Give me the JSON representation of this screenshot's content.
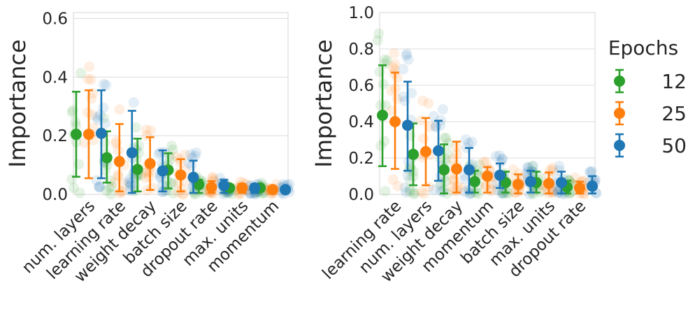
{
  "colors": {
    "epoch_12": "#2ca02c",
    "epoch_25": "#ff7f0e",
    "epoch_50": "#1f77b4",
    "grid": "#dcdcdc",
    "text": "#262626"
  },
  "legend": {
    "title": "Epochs",
    "placement": "right",
    "entries": [
      "12",
      "25",
      "50"
    ]
  },
  "chart_data": [
    {
      "type": "scatter",
      "ylabel": "Importance",
      "ylim": [
        0,
        0.62
      ],
      "yticks": [
        "0.0",
        "0.2",
        "0.4",
        "0.6"
      ],
      "grid": true,
      "categories": [
        "num. layers",
        "learning rate",
        "weight decay",
        "batch size",
        "dropout rate",
        "max. units",
        "momentum"
      ],
      "series": [
        {
          "name": "12",
          "mean": [
            0.205,
            0.125,
            0.085,
            0.083,
            0.033,
            0.022,
            0.022
          ],
          "err_low": [
            0.06,
            0.04,
            0.01,
            0.02,
            0.005,
            0.01,
            0.012
          ],
          "err_high": [
            0.35,
            0.215,
            0.19,
            0.14,
            0.05,
            0.03,
            0.03
          ]
        },
        {
          "name": "25",
          "mean": [
            0.205,
            0.112,
            0.105,
            0.066,
            0.024,
            0.022,
            0.016
          ],
          "err_low": [
            0.055,
            0.01,
            0.015,
            0.01,
            0.005,
            0.005,
            0.005
          ],
          "err_high": [
            0.355,
            0.24,
            0.195,
            0.12,
            0.045,
            0.035,
            0.025
          ]
        },
        {
          "name": "50",
          "mean": [
            0.208,
            0.142,
            0.08,
            0.058,
            0.03,
            0.022,
            0.016
          ],
          "err_low": [
            0.055,
            0.005,
            0.01,
            0.005,
            0.005,
            0.005,
            0.005
          ],
          "err_high": [
            0.355,
            0.285,
            0.15,
            0.115,
            0.05,
            0.035,
            0.025
          ]
        }
      ]
    },
    {
      "type": "scatter",
      "ylabel": "Importance",
      "ylim": [
        0,
        1.0
      ],
      "yticks": [
        "0.0",
        "0.2",
        "0.4",
        "0.6",
        "0.8",
        "1.0"
      ],
      "grid": true,
      "categories": [
        "learning rate",
        "num. layers",
        "weight decay",
        "momentum",
        "batch size",
        "max. units",
        "dropout rate"
      ],
      "series": [
        {
          "name": "12",
          "mean": [
            0.435,
            0.22,
            0.135,
            0.07,
            0.065,
            0.065,
            0.04
          ],
          "err_low": [
            0.155,
            0.05,
            0.005,
            0.01,
            0.01,
            0.01,
            0.005
          ],
          "err_high": [
            0.71,
            0.39,
            0.275,
            0.13,
            0.125,
            0.125,
            0.075
          ]
        },
        {
          "name": "25",
          "mean": [
            0.4,
            0.235,
            0.14,
            0.1,
            0.055,
            0.06,
            0.035
          ],
          "err_low": [
            0.14,
            0.05,
            0.01,
            0.01,
            0.005,
            0.005,
            0.005
          ],
          "err_high": [
            0.67,
            0.42,
            0.29,
            0.15,
            0.11,
            0.12,
            0.07
          ]
        },
        {
          "name": "50",
          "mean": [
            0.38,
            0.24,
            0.135,
            0.105,
            0.07,
            0.065,
            0.045
          ],
          "err_low": [
            0.13,
            0.075,
            0.01,
            0.035,
            0.01,
            0.005,
            0.005
          ],
          "err_high": [
            0.62,
            0.405,
            0.255,
            0.17,
            0.13,
            0.125,
            0.1
          ]
        }
      ]
    }
  ]
}
